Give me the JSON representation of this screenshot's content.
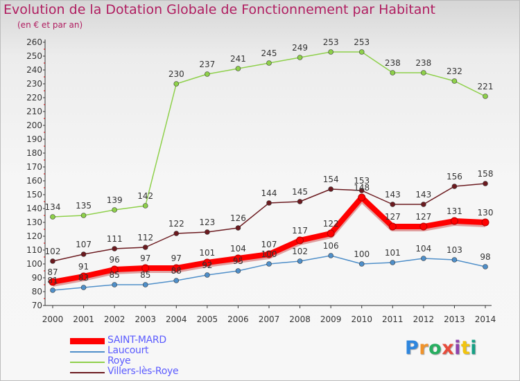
{
  "header": {
    "title": "Evolution de la Dotation Globale de Fonctionnement par Habitant",
    "subtitle": "(en € et par an)"
  },
  "brand": {
    "logo_text": "Proxiti"
  },
  "chart_data": {
    "type": "line",
    "title": "Evolution de la Dotation Globale de Fonctionnement par Habitant",
    "subtitle": "(en € et par an)",
    "x": [
      "2000",
      "2001",
      "2002",
      "2003",
      "2004",
      "2005",
      "2006",
      "2007",
      "2008",
      "2009",
      "2010",
      "2011",
      "2012",
      "2013",
      "2014"
    ],
    "ylim": [
      70,
      260
    ],
    "ytick_step": 10,
    "grid": false,
    "legend_position": "bottom-left",
    "series": [
      {
        "name": "SAINT-MARD",
        "color": "#ff0000",
        "values": [
          87,
          91,
          96,
          97,
          97,
          101,
          104,
          107,
          117,
          122,
          148,
          127,
          127,
          131,
          130
        ],
        "labels": [
          "87",
          "91",
          "96",
          "97",
          "97",
          "101",
          "104",
          "107",
          "117",
          "122",
          "148",
          "127",
          "127",
          "131",
          "130"
        ]
      },
      {
        "name": "Laucourt",
        "color": "#4f8fc9",
        "values": [
          81,
          83,
          85,
          85,
          88,
          92,
          95,
          100,
          102,
          106,
          100,
          101,
          104,
          103,
          98
        ],
        "labels": [
          "81",
          "83",
          "85",
          "85",
          "88",
          "92",
          "95",
          "100",
          "102",
          "106",
          "100",
          "101",
          "104",
          "103",
          "98"
        ]
      },
      {
        "name": "Roye",
        "color": "#8ed04a",
        "values": [
          134,
          135,
          139,
          142,
          230,
          237,
          241,
          245,
          249,
          253,
          253,
          238,
          238,
          232,
          221
        ],
        "labels": [
          "134",
          "135",
          "139",
          "142",
          "230",
          "237",
          "241",
          "245",
          "249",
          "253",
          "253",
          "238",
          "238",
          "232",
          "221"
        ]
      },
      {
        "name": "Villers-lès-Roye",
        "color": "#6b1a1f",
        "values": [
          102,
          107,
          111,
          112,
          122,
          123,
          126,
          144,
          145,
          154,
          153,
          143,
          143,
          156,
          158
        ],
        "labels": [
          "102",
          "107",
          "111",
          "112",
          "122",
          "123",
          "126",
          "144",
          "145",
          "154",
          "153",
          "143",
          "143",
          "156",
          "158"
        ]
      }
    ]
  }
}
